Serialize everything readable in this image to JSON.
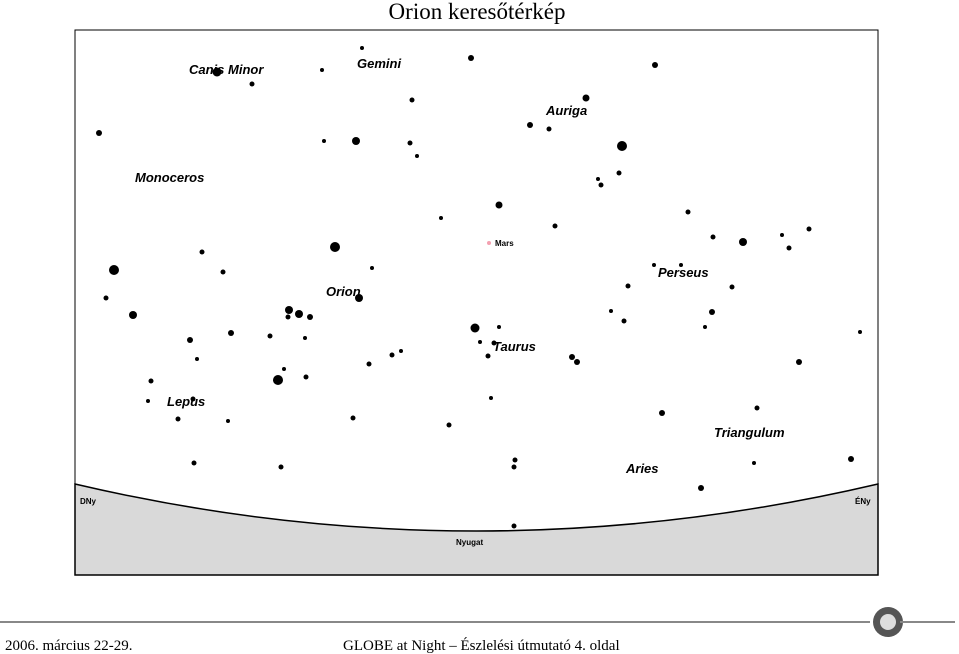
{
  "header": {
    "title": "Orion keresőtérkép"
  },
  "map": {
    "constellations": [
      "Canis Minor",
      "Gemini",
      "Auriga",
      "Monoceros",
      "Perseus",
      "Orion",
      "Taurus",
      "Lepus",
      "Triangulum",
      "Aries"
    ],
    "planet": "Mars",
    "directions": [
      "DNy",
      "ÉNy",
      "Nyugat"
    ]
  },
  "footer": {
    "date": "2006. március 22-29.",
    "text": "GLOBE at Night – Észlelési útmutató 4. oldal"
  }
}
